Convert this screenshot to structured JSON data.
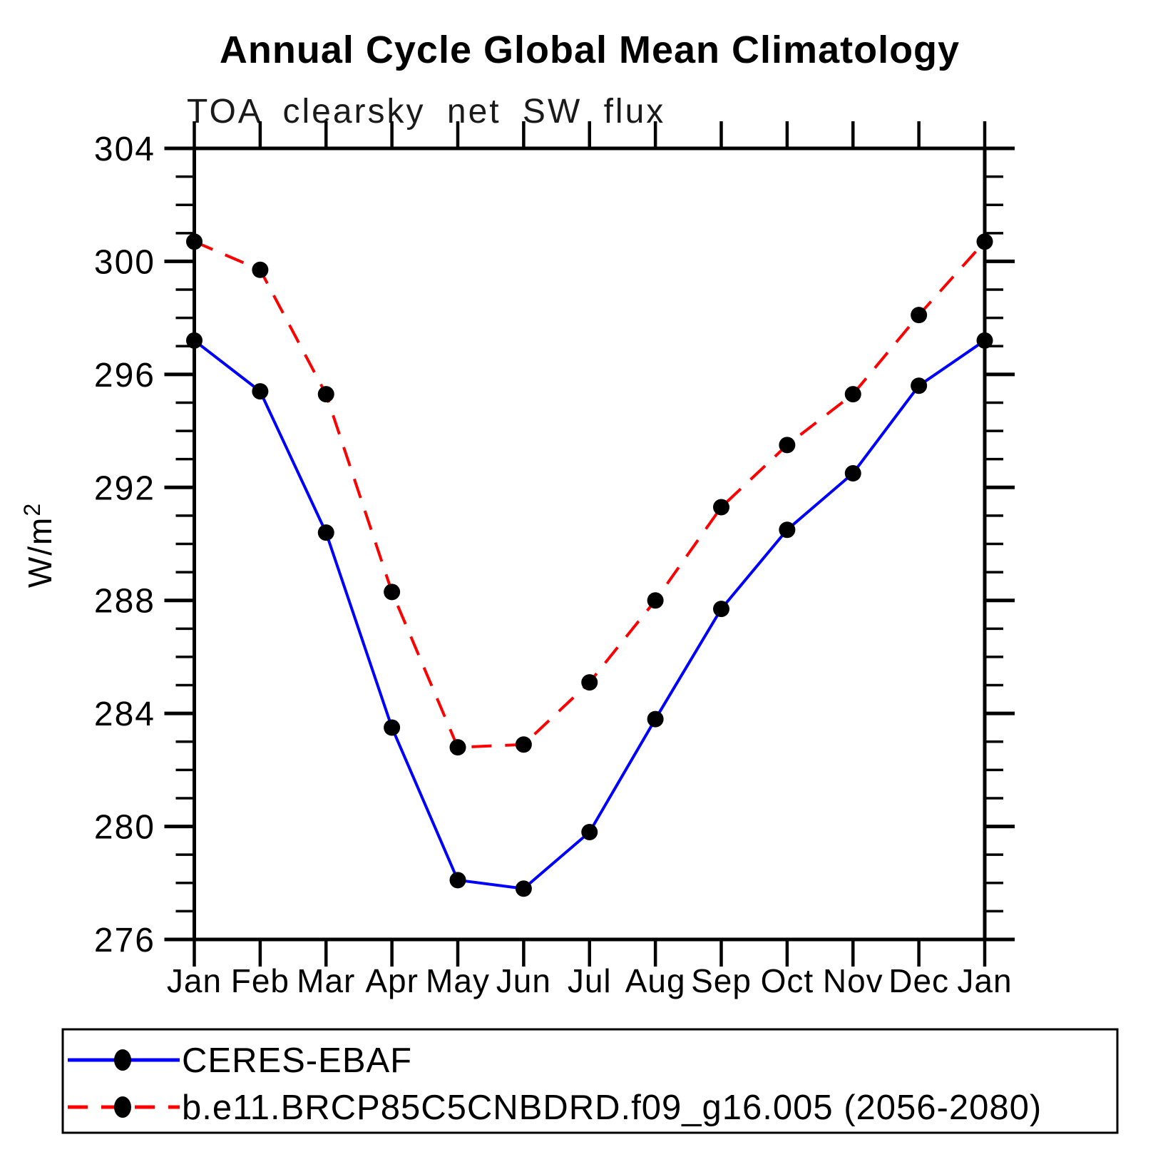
{
  "page": {
    "background_color": "#ffffff",
    "foreground_color": "#000000"
  },
  "chart_data": {
    "type": "line",
    "title": "Annual Cycle Global Mean Climatology",
    "subtitle": "TOA clearsky net SW flux",
    "ylabel": "W/m²",
    "ylabel_base": "W/m",
    "ylabel_sup": "2",
    "xlabel": "",
    "x_categories": [
      "Jan",
      "Feb",
      "Mar",
      "Apr",
      "May",
      "Jun",
      "Jul",
      "Aug",
      "Sep",
      "Oct",
      "Nov",
      "Dec",
      "Jan"
    ],
    "ylim": [
      276,
      304
    ],
    "ytick_major_interval": 4,
    "ytick_minor_interval": 1,
    "ytick_labels": [
      "276",
      "280",
      "284",
      "288",
      "292",
      "296",
      "300",
      "304"
    ],
    "grid": false,
    "frame": "box-with-outward-ticks",
    "legend_position": "bottom",
    "marker_color": "#000000",
    "series": [
      {
        "name": "CERES-EBAF",
        "color": "#0000ff",
        "style": "solid",
        "marker": "circle",
        "values": [
          297.2,
          295.4,
          290.4,
          283.5,
          278.1,
          277.8,
          279.8,
          283.8,
          287.7,
          290.5,
          292.5,
          295.6,
          297.2
        ]
      },
      {
        "name": "b.e11.BRCP85C5CNBDRD.f09_g16.005 (2056-2080)",
        "color": "#ff0000",
        "style": "dashed",
        "marker": "circle",
        "values": [
          300.7,
          299.7,
          295.3,
          288.3,
          282.8,
          282.9,
          285.1,
          288.0,
          291.3,
          293.5,
          295.3,
          298.1,
          300.7
        ]
      }
    ]
  }
}
